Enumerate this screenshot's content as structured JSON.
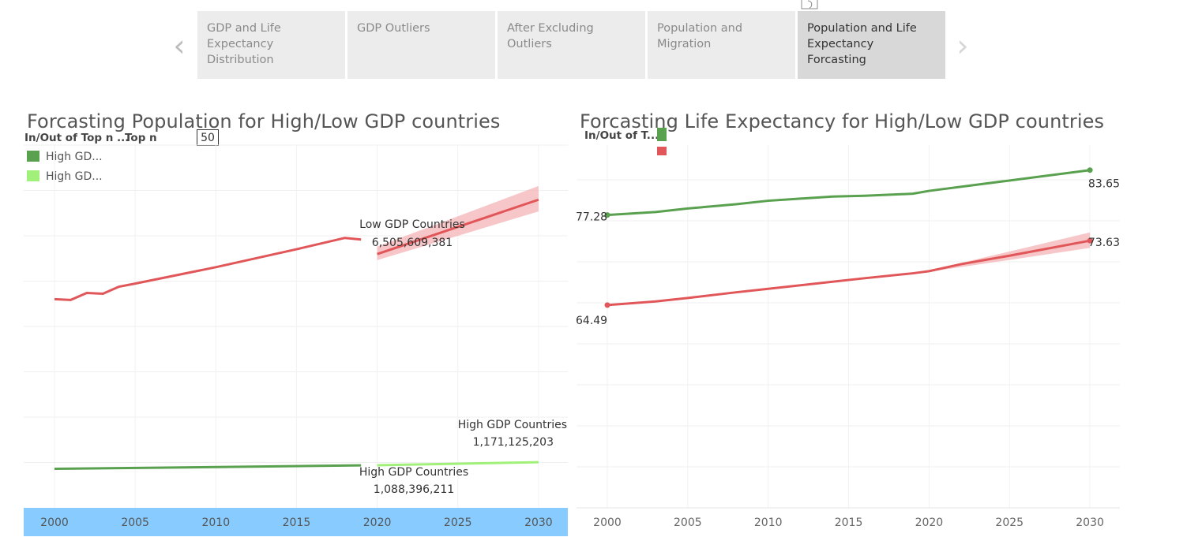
{
  "nav": {
    "tabs": [
      {
        "label": "GDP and  Life\nExpectancy\nDistribution",
        "active": false
      },
      {
        "label": "GDP Outliers",
        "active": false
      },
      {
        "label": "After Excluding\nOutliers",
        "active": false
      },
      {
        "label": "Population and\nMigration",
        "active": false
      },
      {
        "label": "Population and Life\nExpectancy Forcasting",
        "active": true
      }
    ],
    "prev_icon": "chevron-left-icon",
    "next_icon": "chevron-right-icon"
  },
  "left_panel": {
    "legend": {
      "title": "In/Out of Top n ...",
      "topn_label": "Top n",
      "topn_value": "50",
      "items": [
        {
          "label": "High GD...",
          "color": "#59a14f"
        },
        {
          "label": "High GD...",
          "color": "#a0f07a"
        }
      ]
    }
  },
  "right_panel": {
    "legend": {
      "title": "In/Out of T...",
      "items": [
        {
          "color": "#59a14f"
        },
        {
          "color": "#e15759"
        }
      ]
    }
  },
  "chart_data": [
    {
      "type": "line",
      "title": "Forcasting Population for High/Low GDP countries",
      "xlabel": "",
      "ylabel": "",
      "x_ticks": [
        2000,
        2005,
        2010,
        2015,
        2020,
        2025,
        2030
      ],
      "xlim": [
        1998.1,
        2032
      ],
      "ylim": [
        0,
        9300000000
      ],
      "grid": true,
      "series": [
        {
          "name": "Low GDP Countries",
          "kind": "actual",
          "color": "#e15759",
          "x": [
            2000,
            2001,
            2002,
            2003,
            2004,
            2005,
            2010,
            2015,
            2018,
            2019
          ],
          "y": [
            5350000000,
            5330000000,
            5510000000,
            5490000000,
            5670000000,
            5750000000,
            6170000000,
            6630000000,
            6920000000,
            6880000000
          ]
        },
        {
          "name": "Low GDP Countries",
          "kind": "forecast",
          "color": "#e15759",
          "x": [
            2020,
            2030
          ],
          "y": [
            6505609381,
            7900000000
          ],
          "band_upper": [
            6700000000,
            8250000000
          ],
          "band_lower": [
            6350000000,
            7600000000
          ],
          "label": "Low GDP Countries",
          "value_label": "6,505,609,381"
        },
        {
          "name": "High GDP Countries",
          "kind": "actual",
          "color": "#59a14f",
          "x": [
            2000,
            2019
          ],
          "y": [
            1000000000,
            1088396211
          ],
          "label": "High GDP Countries",
          "value_label": "1,088,396,211"
        },
        {
          "name": "High GDP Countries",
          "kind": "forecast",
          "color": "#a0f07a",
          "x": [
            2020,
            2030
          ],
          "y": [
            1092000000,
            1171125203
          ],
          "label": "High GDP Countries",
          "value_label": "1,171,125,203"
        }
      ]
    },
    {
      "type": "line",
      "title": "Forcasting Life Expectancy for High/Low GDP countries",
      "xlabel": "",
      "ylabel": "",
      "x_ticks": [
        2000,
        2005,
        2010,
        2015,
        2020,
        2025,
        2030
      ],
      "xlim": [
        1998.1,
        2032
      ],
      "ylim": [
        35.7,
        87.2
      ],
      "grid": true,
      "series": [
        {
          "name": "High GDP Countries",
          "color": "#59a14f",
          "x": [
            2000,
            2003,
            2005,
            2008,
            2010,
            2014,
            2016,
            2019,
            2020,
            2030
          ],
          "y": [
            77.28,
            77.7,
            78.2,
            78.8,
            79.3,
            79.9,
            80.0,
            80.3,
            80.7,
            83.65
          ],
          "start_label": "77.28",
          "end_label": "83.65"
        },
        {
          "name": "Low GDP Countries",
          "color": "#e15759",
          "x": [
            2000,
            2003,
            2005,
            2008,
            2010,
            2014,
            2016,
            2019,
            2020,
            2022,
            2025,
            2030
          ],
          "y": [
            64.49,
            65.0,
            65.5,
            66.3,
            66.8,
            67.8,
            68.3,
            69.0,
            69.3,
            70.3,
            71.5,
            73.63
          ],
          "band_upper": [
            [
              2020,
              69.4
            ],
            [
              2030,
              74.8
            ]
          ],
          "band_lower": [
            [
              2020,
              69.2
            ],
            [
              2030,
              72.6
            ]
          ],
          "start_label": "64.49",
          "end_label": "73.63"
        }
      ]
    }
  ]
}
